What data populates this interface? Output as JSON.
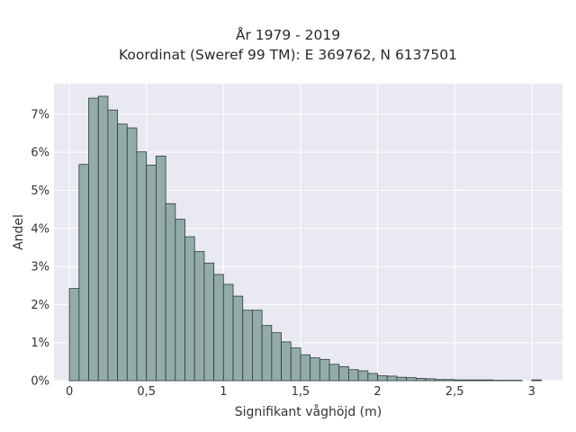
{
  "chart_data": {
    "type": "bar",
    "title_lines": [
      "År 1979 - 2019",
      "Koordinat (Sweref 99 TM): E 369762, N 6137501"
    ],
    "xlabel": "Signifikant våghöjd (m)",
    "ylabel": "Andel",
    "x_ticks": [
      0,
      0.5,
      1,
      1.5,
      2,
      2.5,
      3
    ],
    "x_tick_labels": [
      "0",
      "0,5",
      "1",
      "1,5",
      "2",
      "2,5",
      "3"
    ],
    "y_ticks": [
      0,
      1,
      2,
      3,
      4,
      5,
      6,
      7
    ],
    "y_tick_labels": [
      "0%",
      "1%",
      "2%",
      "3%",
      "4%",
      "5%",
      "6%",
      "7%"
    ],
    "xlim": [
      -0.1,
      3.2
    ],
    "ylim": [
      0,
      7.8
    ],
    "bin_width": 0.0625,
    "bin_starts": [
      0,
      0.0625,
      0.125,
      0.1875,
      0.25,
      0.3125,
      0.375,
      0.4375,
      0.5,
      0.5625,
      0.625,
      0.6875,
      0.75,
      0.8125,
      0.875,
      0.9375,
      1,
      1.0625,
      1.125,
      1.1875,
      1.25,
      1.3125,
      1.375,
      1.4375,
      1.5,
      1.5625,
      1.625,
      1.6875,
      1.75,
      1.8125,
      1.875,
      1.9375,
      2,
      2.0625,
      2.125,
      2.1875,
      2.25,
      2.3125,
      2.375,
      2.4375,
      2.5,
      2.5625,
      2.625,
      2.6875,
      2.75,
      2.8125,
      2.875,
      2.9375,
      3
    ],
    "values": [
      2.42,
      5.68,
      7.42,
      7.47,
      7.11,
      6.74,
      6.64,
      6.01,
      5.66,
      5.9,
      4.65,
      4.24,
      3.78,
      3.39,
      3.09,
      2.79,
      2.53,
      2.22,
      1.85,
      1.85,
      1.45,
      1.26,
      1.02,
      0.86,
      0.68,
      0.6,
      0.56,
      0.43,
      0.37,
      0.29,
      0.26,
      0.19,
      0.13,
      0.12,
      0.09,
      0.08,
      0.06,
      0.05,
      0.03,
      0.03,
      0.02,
      0.02,
      0.02,
      0.02,
      0.01,
      0.01,
      0.01,
      0,
      0.02
    ],
    "grid": true,
    "colors": {
      "bar_fill": "#94aca9",
      "bar_stroke": "#2b3b39",
      "plot_background": "#e9e9f1",
      "grid": "#ffffff"
    }
  }
}
